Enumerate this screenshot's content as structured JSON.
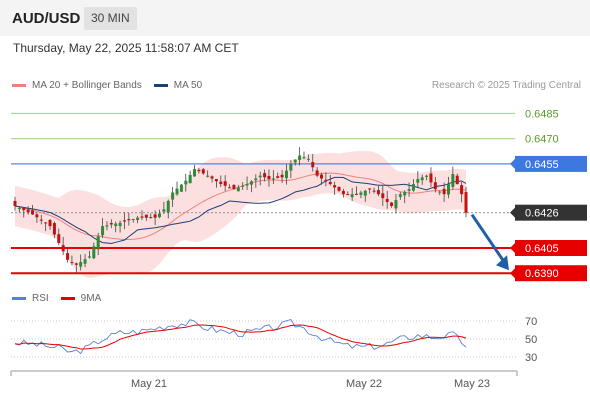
{
  "header": {
    "symbol": "AUD/USD",
    "timeframe": "30 MIN",
    "datetime": "Thursday, May 22, 2025 11:58:07 AM CET"
  },
  "legend": {
    "items": [
      {
        "label": "MA 20 + Bollinger Bands",
        "color": "#f08080"
      },
      {
        "label": "MA 50",
        "color": "#1e3f7a"
      }
    ],
    "copyright": "Research © 2025 Trading Central"
  },
  "rsi_legend": {
    "items": [
      {
        "label": "RSI",
        "color": "#5a7fd6"
      },
      {
        "label": "9MA",
        "color": "#e60000"
      }
    ]
  },
  "chart_data": {
    "type": "candlestick",
    "ylim": [
      0.6383,
      0.6493
    ],
    "price_levels": [
      {
        "value": "0.6485",
        "style": "green-line",
        "line_color": "#a8d68a",
        "text_color": "#5a9a2a",
        "badge": false
      },
      {
        "value": "0.6470",
        "style": "green-line",
        "line_color": "#a8d68a",
        "text_color": "#5a9a2a",
        "badge": false
      },
      {
        "value": "0.6455",
        "style": "resistance",
        "line_color": "#5b84e0",
        "text_color": "#ffffff",
        "badge": true,
        "badge_color": "#3c78e0"
      },
      {
        "value": "0.6426",
        "style": "current",
        "line_color": "#999999",
        "text_color": "#ffffff",
        "badge": true,
        "badge_color": "#333333"
      },
      {
        "value": "0.6405",
        "style": "support",
        "line_color": "#e60000",
        "text_color": "#ffffff",
        "badge": true,
        "badge_color": "#e60000"
      },
      {
        "value": "0.6390",
        "style": "support",
        "line_color": "#e60000",
        "text_color": "#ffffff",
        "badge": true,
        "badge_color": "#e60000"
      }
    ],
    "x_labels": [
      "May 21",
      "May 22",
      "May 23"
    ],
    "anchors": [
      [
        0,
        0.643
      ],
      [
        4,
        0.6425
      ],
      [
        8,
        0.6418
      ],
      [
        10,
        0.6408
      ],
      [
        12,
        0.6398
      ],
      [
        14,
        0.6395
      ],
      [
        17,
        0.64
      ],
      [
        20,
        0.6418
      ],
      [
        24,
        0.642
      ],
      [
        28,
        0.6423
      ],
      [
        32,
        0.6423
      ],
      [
        34,
        0.6428
      ],
      [
        36,
        0.6438
      ],
      [
        39,
        0.6445
      ],
      [
        41,
        0.6452
      ],
      [
        44,
        0.6448
      ],
      [
        47,
        0.6443
      ],
      [
        50,
        0.644
      ],
      [
        53,
        0.6443
      ],
      [
        56,
        0.6448
      ],
      [
        58,
        0.6446
      ],
      [
        61,
        0.6447
      ],
      [
        63,
        0.6455
      ],
      [
        65,
        0.646
      ],
      [
        67,
        0.6458
      ],
      [
        69,
        0.6448
      ],
      [
        72,
        0.6443
      ],
      [
        75,
        0.6437
      ],
      [
        78,
        0.6437
      ],
      [
        81,
        0.644
      ],
      [
        83,
        0.6437
      ],
      [
        86,
        0.643
      ],
      [
        88,
        0.6437
      ],
      [
        90,
        0.644
      ],
      [
        92,
        0.6446
      ],
      [
        94,
        0.6448
      ],
      [
        96,
        0.644
      ],
      [
        98,
        0.6437
      ],
      [
        100,
        0.6449
      ],
      [
        102,
        0.6437
      ],
      [
        103,
        0.6426
      ]
    ],
    "forecast": {
      "from": 0.6426,
      "to": 0.639
    },
    "rsi": {
      "levels": [
        "70",
        "50",
        "30"
      ],
      "anchors": [
        [
          0,
          46
        ],
        [
          5,
          44
        ],
        [
          10,
          40
        ],
        [
          13,
          35
        ],
        [
          16,
          39
        ],
        [
          20,
          50
        ],
        [
          24,
          57
        ],
        [
          28,
          58
        ],
        [
          32,
          62
        ],
        [
          36,
          66
        ],
        [
          40,
          68
        ],
        [
          44,
          62
        ],
        [
          48,
          58
        ],
        [
          52,
          56
        ],
        [
          56,
          60
        ],
        [
          60,
          64
        ],
        [
          63,
          68
        ],
        [
          66,
          62
        ],
        [
          69,
          54
        ],
        [
          72,
          48
        ],
        [
          76,
          42
        ],
        [
          80,
          41
        ],
        [
          84,
          43
        ],
        [
          88,
          50
        ],
        [
          92,
          54
        ],
        [
          96,
          52
        ],
        [
          100,
          55
        ],
        [
          103,
          43
        ]
      ]
    }
  }
}
